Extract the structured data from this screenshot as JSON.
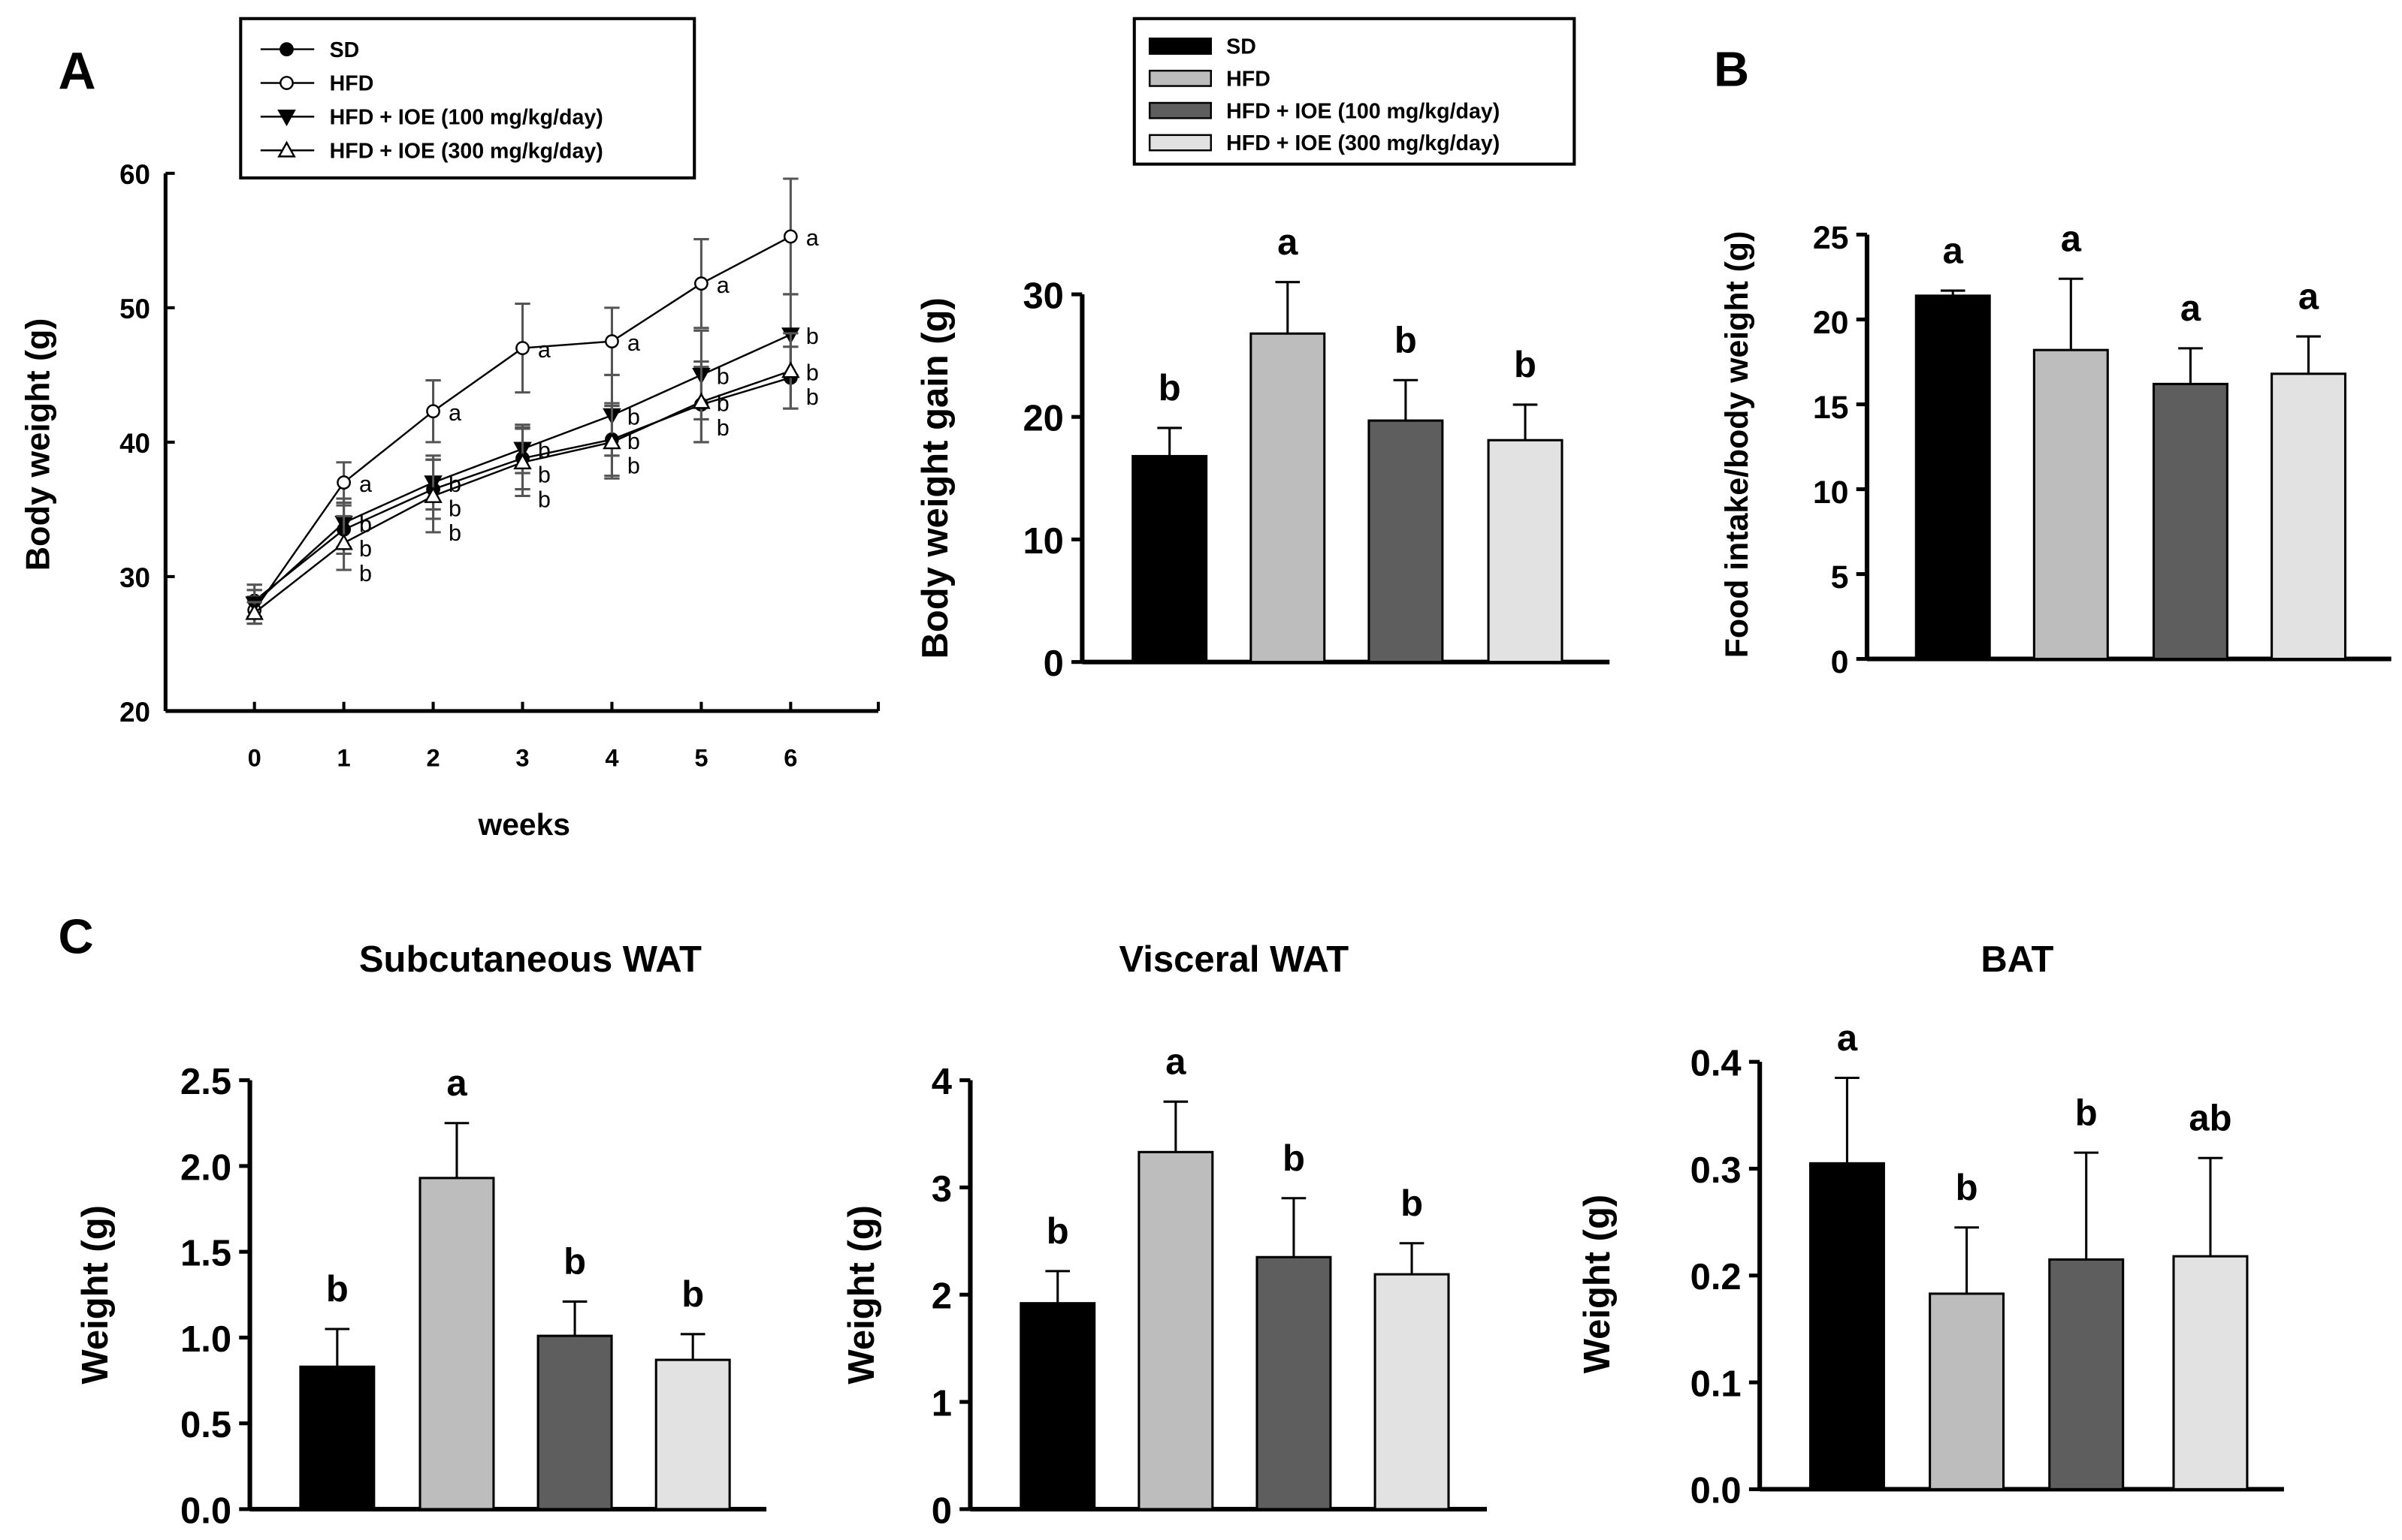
{
  "panel_labels": [
    "A",
    "B",
    "C"
  ],
  "groups": [
    "SD",
    "HFD",
    "HFD  + IOE (100 mg/kg/day)",
    "HFD  + IOE (300 mg/kg/day)"
  ],
  "colors": {
    "SD": "#000000",
    "HFD": "#bdbdbd",
    "IOE100": "#5e5e5e",
    "IOE300": "#e2e2e2"
  },
  "chart_data": [
    {
      "type": "line",
      "ylabel": "Body weight (g)",
      "xlabel": "weeks",
      "ylim": [
        20,
        60
      ],
      "yticks": [
        20,
        30,
        40,
        50,
        60
      ],
      "x": [
        0,
        1,
        2,
        3,
        4,
        5,
        6
      ],
      "series": [
        {
          "name": "SD",
          "marker": "filled-circle",
          "values": [
            28.2,
            33.5,
            36.5,
            38.8,
            40.2,
            42.8,
            44.8
          ],
          "err": [
            1.2,
            1.8,
            2.2,
            2.3,
            2.7,
            2.8,
            2.3
          ],
          "letters": [
            "",
            "b",
            "b",
            "b",
            "b",
            "b",
            "b"
          ]
        },
        {
          "name": "HFD",
          "marker": "open-circle",
          "values": [
            27.5,
            37.0,
            42.3,
            47.0,
            47.5,
            51.8,
            55.3
          ],
          "err": [
            1.0,
            1.5,
            2.3,
            3.3,
            2.5,
            3.3,
            4.3
          ],
          "letters": [
            "",
            "a",
            "a",
            "a",
            "a",
            "a",
            "a"
          ]
        },
        {
          "name": "HFD + IOE (100 mg/kg/day)",
          "marker": "filled-triangle-down",
          "values": [
            28.0,
            34.0,
            37.0,
            39.5,
            42.0,
            45.0,
            48.0
          ],
          "err": [
            1.0,
            1.8,
            2.0,
            1.8,
            3.0,
            3.3,
            3.0
          ],
          "letters": [
            "",
            "b",
            "b",
            "b",
            "b",
            "b",
            "b"
          ]
        },
        {
          "name": "HFD + IOE (300 mg/kg/day)",
          "marker": "open-triangle-up",
          "values": [
            27.3,
            32.5,
            36.0,
            38.5,
            40.0,
            43.0,
            45.3
          ],
          "err": [
            0.8,
            2.0,
            2.7,
            2.5,
            2.7,
            3.0,
            2.8
          ],
          "letters": [
            "",
            "b",
            "b",
            "b",
            "b",
            "b",
            "b"
          ]
        }
      ]
    },
    {
      "type": "bar",
      "ylabel": "Body weight gain (g)",
      "ylim": [
        0,
        30
      ],
      "yticks": [
        0,
        10,
        20,
        30
      ],
      "categories": [
        "SD",
        "HFD",
        "HFD + IOE 100",
        "HFD + IOE 300"
      ],
      "values": [
        16.8,
        26.8,
        19.7,
        18.1
      ],
      "err": [
        2.3,
        4.2,
        3.3,
        2.9
      ],
      "letters": [
        "b",
        "a",
        "b",
        "b"
      ]
    },
    {
      "type": "bar",
      "ylabel": "Food intake/body weight (g)",
      "ylim": [
        0,
        25
      ],
      "yticks": [
        0,
        5,
        10,
        15,
        20,
        25
      ],
      "categories": [
        "SD",
        "HFD",
        "HFD + IOE 100",
        "HFD + IOE 300"
      ],
      "values": [
        21.4,
        18.2,
        16.2,
        16.8
      ],
      "err": [
        0.3,
        4.2,
        2.1,
        2.2
      ],
      "letters": [
        "a",
        "a",
        "a",
        "a"
      ]
    },
    {
      "type": "bar",
      "title": "Subcutaneous WAT",
      "ylabel": "Weight (g)",
      "ylim": [
        0,
        2.5
      ],
      "yticks": [
        "0.0",
        "0.5",
        "1.0",
        "1.5",
        "2.0",
        "2.5"
      ],
      "categories": [
        "SD",
        "HFD",
        "HFD + IOE 100",
        "HFD + IOE 300"
      ],
      "values": [
        0.83,
        1.93,
        1.01,
        0.87
      ],
      "err": [
        0.22,
        0.32,
        0.2,
        0.15
      ],
      "letters": [
        "b",
        "a",
        "b",
        "b"
      ]
    },
    {
      "type": "bar",
      "title": "Visceral WAT",
      "ylabel": "Weight (g)",
      "ylim": [
        0,
        4
      ],
      "yticks": [
        "0",
        "1",
        "2",
        "3",
        "4"
      ],
      "categories": [
        "SD",
        "HFD",
        "HFD + IOE 100",
        "HFD + IOE 300"
      ],
      "values": [
        1.92,
        3.33,
        2.35,
        2.19
      ],
      "err": [
        0.3,
        0.47,
        0.55,
        0.29
      ],
      "letters": [
        "b",
        "a",
        "b",
        "b"
      ]
    },
    {
      "type": "bar",
      "title": "BAT",
      "ylabel": "Weight (g)",
      "ylim": [
        0,
        0.4
      ],
      "yticks": [
        "0.0",
        "0.1",
        "0.2",
        "0.3",
        "0.4"
      ],
      "categories": [
        "SD",
        "HFD",
        "HFD + IOE 100",
        "HFD + IOE 300"
      ],
      "values": [
        0.305,
        0.183,
        0.215,
        0.218
      ],
      "err": [
        0.08,
        0.062,
        0.1,
        0.092
      ],
      "letters": [
        "a",
        "b",
        "b",
        "ab"
      ]
    }
  ]
}
